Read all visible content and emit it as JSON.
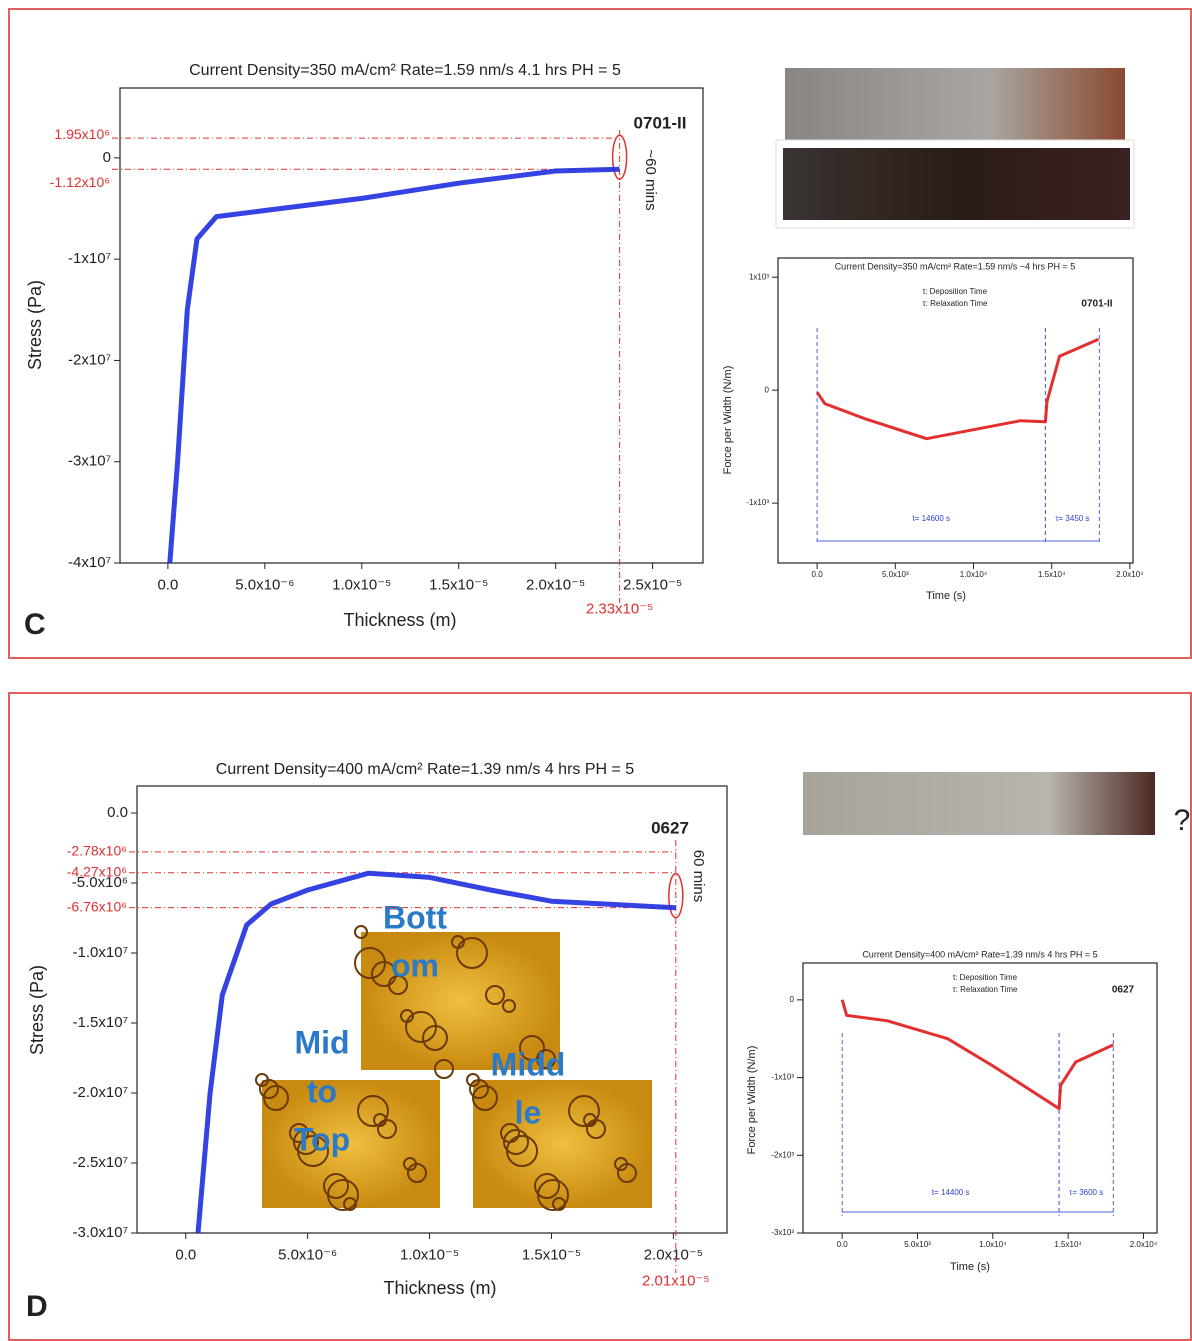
{
  "panels": [
    "C",
    "D"
  ],
  "photo_note": "?",
  "chart_data": [
    {
      "type": "line",
      "title": "Current Density=350 mA/cm² Rate=1.59 nm/s 4.1 hrs PH = 5",
      "x_label": "Thickness (m)",
      "y_label": "Stress (Pa)",
      "color": "#1f2fe0",
      "x": [
        1e-07,
        5e-07,
        1e-06,
        1.5e-06,
        2.5e-06,
        5e-06,
        1e-05,
        1.5e-05,
        2e-05,
        2.33e-05
      ],
      "values": [
        -40000000,
        -30000000,
        -15000000,
        -8000000,
        -5800000,
        -5200000,
        -4000000,
        -2500000,
        -1300000,
        -1120000
      ],
      "xlim": [
        -2.47e-06,
        2.76e-05
      ],
      "ylim": [
        -40000000,
        6900000
      ],
      "xticks": [
        {
          "value": 0,
          "label": "0.0"
        },
        {
          "value": 5e-06,
          "label": "5.0x10⁻⁶"
        },
        {
          "value": 1e-05,
          "label": "1.0x10⁻⁵"
        },
        {
          "value": 1.5e-05,
          "label": "1.5x10⁻⁵"
        },
        {
          "value": 2e-05,
          "label": "2.0x10⁻⁵"
        },
        {
          "value": 2.5e-05,
          "label": "2.5x10⁻⁵"
        }
      ],
      "yticks": [
        0,
        {
          "value": -10000000,
          "label": "-1x10⁷"
        },
        {
          "value": -20000000,
          "label": "-2x10⁷"
        },
        {
          "value": -30000000,
          "label": "-3x10⁷"
        },
        {
          "value": -40000000,
          "label": "-4x10⁷"
        }
      ],
      "hlines": [
        {
          "value": 1950000,
          "label": "1.95x10⁶"
        },
        {
          "value": -1120000,
          "label": "-1.12x10⁶"
        }
      ],
      "vlines": [
        {
          "value": 2.33e-05,
          "label": "2.33x10⁻⁵"
        }
      ],
      "notes": [
        "0701-II",
        "~60 mins"
      ]
    },
    {
      "type": "line",
      "title": "Current Density=350 mA/cm² Rate=1.59 nm/s ~4 hrs PH = 5",
      "x_label": "Time (s)",
      "y_label": "Force per Width (N/m)",
      "color": "#e01818",
      "x": [
        0,
        500,
        3000,
        7000,
        10000,
        13000,
        14600,
        14700,
        15500,
        18000
      ],
      "values": [
        -20,
        -120,
        -250,
        -430,
        -350,
        -270,
        -280,
        -100,
        300,
        450
      ],
      "xlim": [
        -2500,
        20200
      ],
      "ylim": [
        -1530,
        1170
      ],
      "xticks": [
        {
          "value": 0,
          "label": "0.0"
        },
        {
          "value": 5000,
          "label": "5.0x10³"
        },
        {
          "value": 10000,
          "label": "1.0x10⁴"
        },
        {
          "value": 15000,
          "label": "1.5x10⁴"
        },
        {
          "value": 20000,
          "label": "2.0x10⁴"
        }
      ],
      "yticks": [
        {
          "value": 1000,
          "label": "1x10³"
        },
        0,
        {
          "value": -1000,
          "label": "-1x10³"
        }
      ],
      "spans": [
        {
          "start": 0,
          "end": 14600,
          "label": "t= 14600 s"
        },
        {
          "start": 14600,
          "end": 18050,
          "label": "τ= 3450 s"
        }
      ],
      "notes": [
        "t: Deposition Time",
        "τ: Relaxation Time",
        "0701-II"
      ]
    },
    {
      "type": "line",
      "title": "Current Density=400 mA/cm² Rate=1.39 nm/s 4 hrs PH = 5",
      "x_label": "Thickness (m)",
      "y_label": "Stress (Pa)",
      "color": "#1f2fe0",
      "x": [
        5e-07,
        1e-06,
        1.5e-06,
        2.5e-06,
        3.5e-06,
        5e-06,
        7.5e-06,
        1e-05,
        1.25e-05,
        1.5e-05,
        2.01e-05
      ],
      "values": [
        -30000000,
        -20000000,
        -13000000,
        -8000000,
        -6500000,
        -5500000,
        -4300000,
        -4600000,
        -5500000,
        -6300000,
        -6760000
      ],
      "xlim": [
        -2e-06,
        2.22e-05
      ],
      "ylim": [
        -30000000,
        1930000
      ],
      "xticks": [
        {
          "value": 0,
          "label": "0.0"
        },
        {
          "value": 5e-06,
          "label": "5.0x10⁻⁶"
        },
        {
          "value": 1e-05,
          "label": "1.0x10⁻⁵"
        },
        {
          "value": 1.5e-05,
          "label": "1.5x10⁻⁵"
        },
        {
          "value": 2e-05,
          "label": "2.0x10⁻⁵"
        }
      ],
      "yticks": [
        {
          "value": 0,
          "label": "0.0"
        },
        {
          "value": -5000000,
          "label": "-5.0x10⁶"
        },
        {
          "value": -10000000,
          "label": "-1.0x10⁷"
        },
        {
          "value": -15000000,
          "label": "-1.5x10⁷"
        },
        {
          "value": -20000000,
          "label": "-2.0x10⁷"
        },
        {
          "value": -25000000,
          "label": "-2.5x10⁷"
        },
        {
          "value": -30000000,
          "label": "-3.0x10⁷"
        }
      ],
      "hlines": [
        {
          "value": -2780000,
          "label": "-2.78x10⁶"
        },
        {
          "value": -4270000,
          "label": "-4.27x10⁶"
        },
        {
          "value": -6760000,
          "label": "-6.76x10⁶"
        }
      ],
      "vlines": [
        {
          "value": 2.01e-05,
          "label": "2.01x10⁻⁵"
        }
      ],
      "notes": [
        "0627",
        "60 mins"
      ],
      "insets": [
        [
          "Bott",
          "om"
        ],
        [
          "Mid",
          "to",
          "Top"
        ],
        [
          "Midd",
          "le"
        ]
      ]
    },
    {
      "type": "line",
      "title": "Current Density=400 mA/cm² Rate=1.39 nm/s 4 hrs PH = 5",
      "x_label": "Time (s)",
      "y_label": "Force per Width (N/m)",
      "color": "#e01818",
      "x": [
        0,
        300,
        3000,
        7000,
        10000,
        14400,
        14500,
        15500,
        18000
      ],
      "values": [
        0,
        -200,
        -270,
        -500,
        -850,
        -1400,
        -1100,
        -800,
        -580
      ],
      "xlim": [
        -2600,
        20900
      ],
      "ylim": [
        -3000,
        474
      ],
      "xticks": [
        {
          "value": 0,
          "label": "0.0"
        },
        {
          "value": 5000,
          "label": "5.0x10³"
        },
        {
          "value": 10000,
          "label": "1.0x10⁴"
        },
        {
          "value": 15000,
          "label": "1.5x10⁴"
        },
        {
          "value": 20000,
          "label": "2.0x10⁴"
        }
      ],
      "yticks": [
        0,
        {
          "value": -1000,
          "label": "-1x10³"
        },
        {
          "value": -2000,
          "label": "-2x10³"
        },
        {
          "value": -3000,
          "label": "-3x10³"
        }
      ],
      "spans": [
        {
          "start": 0,
          "end": 14400,
          "label": "t= 14400 s"
        },
        {
          "start": 14400,
          "end": 18000,
          "label": "τ= 3600 s"
        }
      ],
      "notes": [
        "t: Deposition Time",
        "τ: Relaxation Time",
        "0627"
      ]
    }
  ]
}
